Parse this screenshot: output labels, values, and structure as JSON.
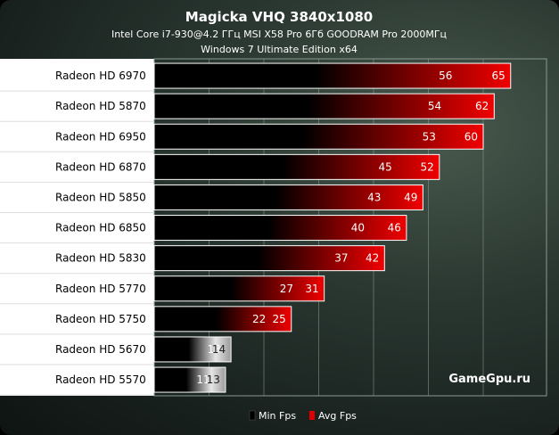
{
  "chart_data": {
    "type": "bar",
    "title": "Magicka VHQ 3840x1080",
    "subtitle_line1": "Intel Core i7-930@4.2 ГГц  MSI X58 Pro 6Гб GOODRAM  Pro 2000МГц",
    "subtitle_line2": "Windows 7 Ultimate Edition x64",
    "watermark": "GameGpu.ru",
    "xlim": [
      0,
      70
    ],
    "grid": true,
    "legend_position": "bottom",
    "categories": [
      "Radeon HD 6970",
      "Radeon HD 5870",
      "Radeon HD 6950",
      "Radeon HD 6870",
      "Radeon HD 5850",
      "Radeon HD 6850",
      "Radeon HD 5830",
      "Radeon HD 5770",
      "Radeon HD 5750",
      "Radeon HD 5670",
      "Radeon HD 5570"
    ],
    "series": [
      {
        "name": "Min Fps",
        "values": [
          56,
          54,
          53,
          45,
          43,
          40,
          37,
          27,
          22,
          13,
          11
        ]
      },
      {
        "name": "Avg Fps",
        "values": [
          65,
          62,
          60,
          52,
          49,
          46,
          42,
          31,
          25,
          14,
          13
        ]
      }
    ],
    "colors": {
      "min": "#000000",
      "avg": "#e00000",
      "low_avg": "#d8d8d8"
    }
  }
}
